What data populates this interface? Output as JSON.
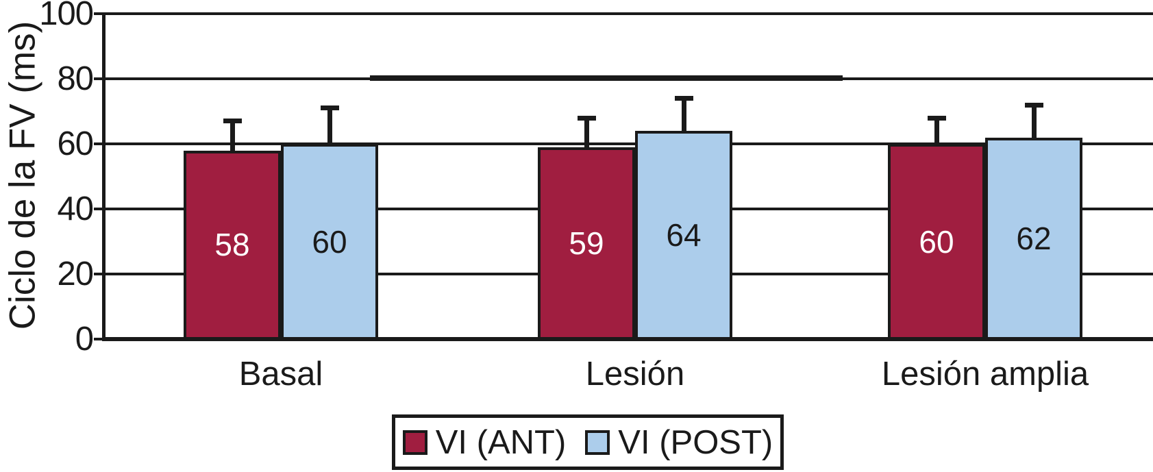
{
  "figure": {
    "background": "#FFFFFF",
    "line_color": "#1A1A1A",
    "text_color": "#1A1A1A"
  },
  "chart_data": {
    "type": "bar",
    "title": "",
    "xlabel": "",
    "ylabel": "Ciclo de la FV (ms)",
    "ylim": [
      0,
      100
    ],
    "yticks": [
      0,
      20,
      40,
      60,
      80,
      100
    ],
    "grid": "horizontal black gridlines every 20 ms, extending to right edge",
    "legend_position": "bottom-center, boxed",
    "categories": [
      "Basal",
      "Lesión",
      "Lesión amplia"
    ],
    "series": [
      {
        "name": "VI (ANT)",
        "color": "#A01E40",
        "label_color": "#FFFFFF",
        "values": [
          58,
          59,
          60
        ],
        "error_bar_tops": [
          67,
          68,
          68
        ]
      },
      {
        "name": "VI (POST)",
        "color": "#ACCDEB",
        "label_color": "#1A1A1A",
        "values": [
          60,
          64,
          62
        ],
        "error_bar_tops": [
          71,
          74,
          72
        ]
      }
    ],
    "bar_value_labels_shown": true,
    "error_bars": "upper one-sided whiskers with caps",
    "annotations": [
      {
        "kind": "emphasis-segment",
        "y": 80,
        "description": "slightly thicker black segment overlying the 80 ms gridline across the middle of the plot"
      }
    ]
  }
}
